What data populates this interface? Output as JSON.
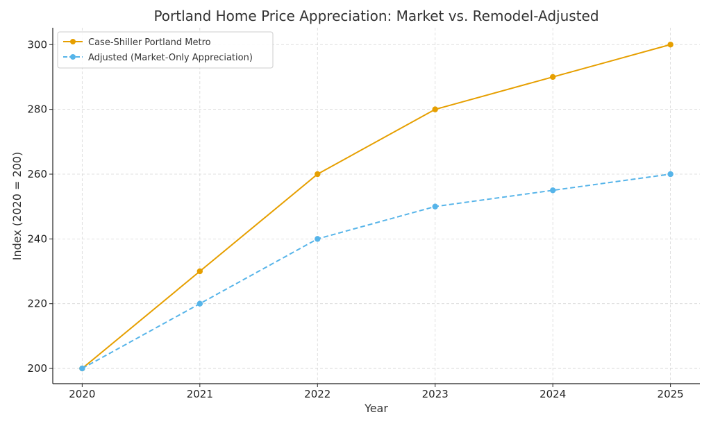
{
  "chart_data": {
    "type": "line",
    "title": "Portland Home Price Appreciation: Market vs. Remodel-Adjusted",
    "xlabel": "Year",
    "ylabel": "Index (2020 = 200)",
    "x": [
      2020,
      2021,
      2022,
      2023,
      2024,
      2025
    ],
    "xlim": [
      2019.75,
      2025.25
    ],
    "ylim": [
      195.3,
      305.2
    ],
    "yticks": [
      200,
      220,
      240,
      260,
      280,
      300
    ],
    "grid": true,
    "legend_position": "top-left",
    "series": [
      {
        "name": "Case-Shiller Portland Metro",
        "values": [
          200,
          230,
          260,
          280,
          290,
          300
        ],
        "color": "#E69F00",
        "line_style": "solid",
        "marker": "circle"
      },
      {
        "name": "Adjusted (Market-Only Appreciation)",
        "values": [
          200,
          220,
          240,
          250,
          255,
          260
        ],
        "color": "#56B4E9",
        "line_style": "dashed",
        "marker": "circle"
      }
    ]
  }
}
